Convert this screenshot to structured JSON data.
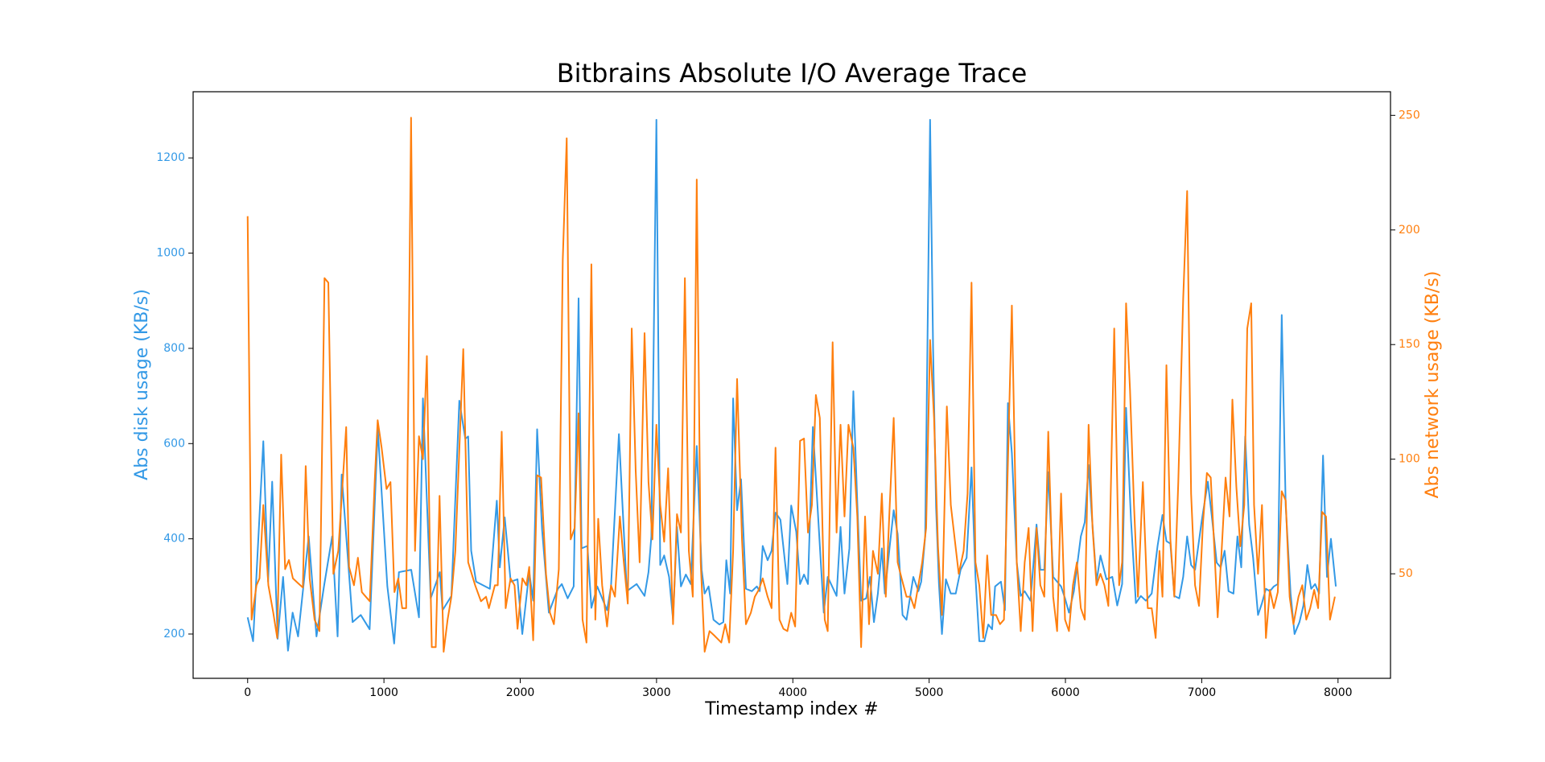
{
  "chart_data": {
    "type": "line",
    "title": "Bitbrains Absolute I/O Average Trace",
    "xlabel": "Timestamp index  #",
    "ylabel": "Abs disk usage (KB/s)",
    "y2label": "Abs network usage (KB/s)",
    "xlim": [
      -400,
      8385
    ],
    "xticks": [
      0,
      1000,
      2000,
      3000,
      4000,
      5000,
      6000,
      7000,
      8000
    ],
    "ylim": [
      107,
      1339
    ],
    "yticks": [
      200,
      400,
      600,
      800,
      1000,
      1200
    ],
    "y2lim": [
      4.4,
      260.3
    ],
    "y2ticks": [
      50,
      100,
      150,
      200,
      250
    ],
    "grid": false,
    "series": [
      {
        "color": "#3399e6",
        "axis": "y",
        "x": [
          0,
          40,
          115,
          150,
          180,
          220,
          260,
          296,
          330,
          370,
          448,
          505,
          560,
          620,
          660,
          690,
          770,
          830,
          895,
          955,
          1025,
          1075,
          1110,
          1200,
          1257,
          1286,
          1343,
          1410,
          1430,
          1495,
          1553,
          1597,
          1618,
          1640,
          1676,
          1777,
          1828,
          1850,
          1886,
          1930,
          1980,
          2015,
          2066,
          2095,
          2124,
          2160,
          2210,
          2276,
          2305,
          2348,
          2392,
          2428,
          2450,
          2493,
          2522,
          2565,
          2637,
          2666,
          2724,
          2782,
          2854,
          2912,
          2941,
          2962,
          2999,
          3027,
          3056,
          3092,
          3121,
          3150,
          3179,
          3215,
          3251,
          3295,
          3331,
          3353,
          3382,
          3418,
          3461,
          3490,
          3512,
          3540,
          3562,
          3591,
          3620,
          3656,
          3699,
          3736,
          3757,
          3779,
          3815,
          3844,
          3873,
          3909,
          3960,
          3988,
          4025,
          4053,
          4082,
          4111,
          4147,
          4191,
          4227,
          4256,
          4321,
          4350,
          4379,
          4415,
          4444,
          4473,
          4501,
          4538,
          4566,
          4595,
          4624,
          4653,
          4675,
          4711,
          4740,
          4769,
          4805,
          4834,
          4884,
          4921,
          4942,
          4971,
          5007,
          5029,
          5051,
          5072,
          5094,
          5123,
          5159,
          5195,
          5231,
          5275,
          5311,
          5340,
          5368,
          5405,
          5434,
          5462,
          5484,
          5527,
          5556,
          5578,
          5607,
          5643,
          5672,
          5701,
          5744,
          5788,
          5816,
          5845,
          5874,
          5910,
          5939,
          5968,
          5997,
          6026,
          6062,
          6113,
          6142,
          6170,
          6192,
          6228,
          6257,
          6301,
          6344,
          6380,
          6416,
          6445,
          6481,
          6517,
          6553,
          6590,
          6633,
          6676,
          6712,
          6741,
          6770,
          6799,
          6835,
          6864,
          6893,
          6922,
          6951,
          7001,
          7045,
          7073,
          7110,
          7139,
          7168,
          7197,
          7233,
          7262,
          7290,
          7319,
          7348,
          7377,
          7413,
          7442,
          7471,
          7500,
          7529,
          7558,
          7587,
          7616,
          7652,
          7681,
          7717,
          7746,
          7775,
          7803,
          7832,
          7861,
          7890,
          7919,
          7948,
          7984
        ],
        "values": [
          235,
          185,
          605,
          310,
          520,
          190,
          320,
          165,
          245,
          195,
          405,
          195,
          300,
          405,
          195,
          535,
          225,
          240,
          210,
          630,
          300,
          180,
          330,
          335,
          235,
          695,
          275,
          330,
          250,
          280,
          690,
          610,
          615,
          375,
          310,
          295,
          480,
          340,
          445,
          310,
          315,
          200,
          330,
          270,
          630,
          420,
          245,
          295,
          305,
          275,
          300,
          905,
          380,
          385,
          255,
          300,
          250,
          300,
          620,
          290,
          305,
          280,
          330,
          405,
          1280,
          345,
          365,
          320,
          230,
          425,
          300,
          325,
          305,
          595,
          335,
          285,
          300,
          230,
          220,
          225,
          355,
          285,
          695,
          460,
          525,
          295,
          290,
          300,
          290,
          385,
          355,
          375,
          455,
          440,
          305,
          470,
          415,
          305,
          325,
          305,
          635,
          420,
          245,
          320,
          280,
          425,
          285,
          380,
          710,
          475,
          270,
          275,
          320,
          225,
          285,
          380,
          285,
          385,
          460,
          410,
          240,
          230,
          320,
          290,
          310,
          405,
          1280,
          800,
          465,
          305,
          200,
          315,
          285,
          285,
          335,
          360,
          550,
          320,
          185,
          185,
          220,
          210,
          300,
          310,
          250,
          685,
          580,
          350,
          280,
          290,
          270,
          430,
          335,
          335,
          540,
          320,
          310,
          300,
          275,
          245,
          290,
          405,
          435,
          555,
          455,
          310,
          365,
          315,
          320,
          260,
          305,
          675,
          440,
          265,
          280,
          270,
          285,
          385,
          450,
          395,
          390,
          280,
          275,
          320,
          405,
          345,
          335,
          440,
          520,
          450,
          350,
          340,
          375,
          290,
          285,
          405,
          340,
          615,
          430,
          360,
          240,
          265,
          295,
          290,
          300,
          305,
          870,
          470,
          285,
          200,
          225,
          260,
          345,
          295,
          305,
          285,
          575,
          320,
          400,
          300
        ]
      },
      {
        "color": "#ff7f0e",
        "axis": "y2",
        "x": [
          0,
          29,
          65,
          87,
          115,
          152,
          188,
          217,
          246,
          275,
          303,
          332,
          368,
          405,
          426,
          455,
          491,
          527,
          564,
          592,
          629,
          665,
          723,
          744,
          780,
          809,
          838,
          867,
          896,
          932,
          954,
          983,
          1019,
          1048,
          1077,
          1105,
          1134,
          1163,
          1199,
          1228,
          1257,
          1286,
          1315,
          1337,
          1351,
          1380,
          1408,
          1438,
          1467,
          1495,
          1524,
          1582,
          1618,
          1669,
          1712,
          1749,
          1770,
          1814,
          1835,
          1864,
          1893,
          1929,
          1958,
          1980,
          2016,
          2045,
          2066,
          2095,
          2124,
          2153,
          2189,
          2218,
          2247,
          2283,
          2312,
          2341,
          2370,
          2399,
          2428,
          2457,
          2486,
          2522,
          2551,
          2572,
          2601,
          2637,
          2666,
          2695,
          2731,
          2760,
          2789,
          2818,
          2847,
          2876,
          2912,
          2941,
          2970,
          2999,
          3027,
          3056,
          3085,
          3121,
          3150,
          3179,
          3208,
          3237,
          3266,
          3295,
          3324,
          3353,
          3389,
          3425,
          3475,
          3504,
          3533,
          3562,
          3591,
          3627,
          3656,
          3692,
          3721,
          3750,
          3779,
          3815,
          3844,
          3873,
          3902,
          3931,
          3960,
          3988,
          4017,
          4053,
          4082,
          4111,
          4140,
          4169,
          4198,
          4234,
          4256,
          4292,
          4321,
          4350,
          4379,
          4408,
          4444,
          4473,
          4501,
          4530,
          4559,
          4588,
          4624,
          4653,
          4682,
          4711,
          4740,
          4769,
          4798,
          4834,
          4863,
          4892,
          4921,
          4949,
          4978,
          5007,
          5036,
          5065,
          5094,
          5130,
          5159,
          5188,
          5217,
          5253,
          5282,
          5311,
          5340,
          5368,
          5397,
          5426,
          5455,
          5491,
          5520,
          5549,
          5607,
          5643,
          5672,
          5701,
          5730,
          5759,
          5788,
          5816,
          5845,
          5874,
          5910,
          5939,
          5968,
          5997,
          6026,
          6055,
          6084,
          6113,
          6142,
          6170,
          6199,
          6228,
          6257,
          6286,
          6315,
          6358,
          6394,
          6416,
          6445,
          6474,
          6503,
          6532,
          6568,
          6604,
          6633,
          6662,
          6690,
          6712,
          6741,
          6770,
          6799,
          6828,
          6864,
          6893,
          6922,
          6951,
          6980,
          7009,
          7038,
          7066,
          7095,
          7117,
          7146,
          7175,
          7204,
          7225,
          7254,
          7283,
          7312,
          7334,
          7363,
          7384,
          7413,
          7442,
          7471,
          7500,
          7529,
          7558,
          7587,
          7616,
          7645,
          7673,
          7710,
          7738,
          7767,
          7796,
          7825,
          7854,
          7883,
          7912,
          7941,
          7977
        ],
        "values": [
          206,
          30,
          45,
          48,
          80,
          45,
          33,
          22,
          102,
          52,
          56,
          48,
          46,
          44,
          97,
          48,
          30,
          25,
          179,
          177,
          50,
          60,
          114,
          53,
          45,
          57,
          42,
          40,
          38,
          90,
          117,
          105,
          87,
          90,
          42,
          48,
          35,
          35,
          249,
          60,
          110,
          100,
          145,
          60,
          18,
          18,
          84,
          16,
          30,
          40,
          60,
          148,
          55,
          45,
          38,
          40,
          35,
          45,
          45,
          112,
          35,
          48,
          45,
          26,
          48,
          45,
          53,
          21,
          93,
          92,
          50,
          33,
          28,
          52,
          187,
          240,
          65,
          70,
          120,
          30,
          20,
          185,
          30,
          74,
          45,
          27,
          45,
          40,
          75,
          55,
          37,
          157,
          95,
          55,
          155,
          90,
          65,
          115,
          80,
          64,
          96,
          28,
          76,
          68,
          179,
          60,
          40,
          222,
          55,
          16,
          25,
          23,
          20,
          28,
          20,
          60,
          135,
          65,
          28,
          33,
          40,
          43,
          48,
          40,
          35,
          105,
          30,
          26,
          25,
          33,
          27,
          108,
          109,
          68,
          80,
          128,
          118,
          30,
          25,
          151,
          68,
          115,
          75,
          115,
          105,
          75,
          18,
          75,
          28,
          60,
          50,
          85,
          40,
          80,
          118,
          55,
          48,
          40,
          40,
          35,
          45,
          55,
          70,
          152,
          118,
          62,
          32,
          123,
          80,
          65,
          50,
          60,
          85,
          177,
          55,
          45,
          22,
          58,
          32,
          32,
          28,
          30,
          167,
          55,
          25,
          55,
          70,
          25,
          70,
          45,
          40,
          112,
          40,
          25,
          85,
          30,
          25,
          45,
          55,
          35,
          30,
          115,
          70,
          45,
          50,
          45,
          36,
          157,
          45,
          55,
          168,
          130,
          80,
          40,
          90,
          35,
          35,
          22,
          60,
          40,
          141,
          65,
          40,
          90,
          170,
          217,
          85,
          45,
          36,
          72,
          94,
          92,
          58,
          31,
          60,
          92,
          75,
          126,
          88,
          62,
          80,
          157,
          168,
          80,
          50,
          80,
          22,
          43,
          35,
          42,
          86,
          82,
          40,
          28,
          40,
          45,
          30,
          35,
          43,
          35,
          77,
          75,
          30,
          40
        ]
      }
    ]
  }
}
